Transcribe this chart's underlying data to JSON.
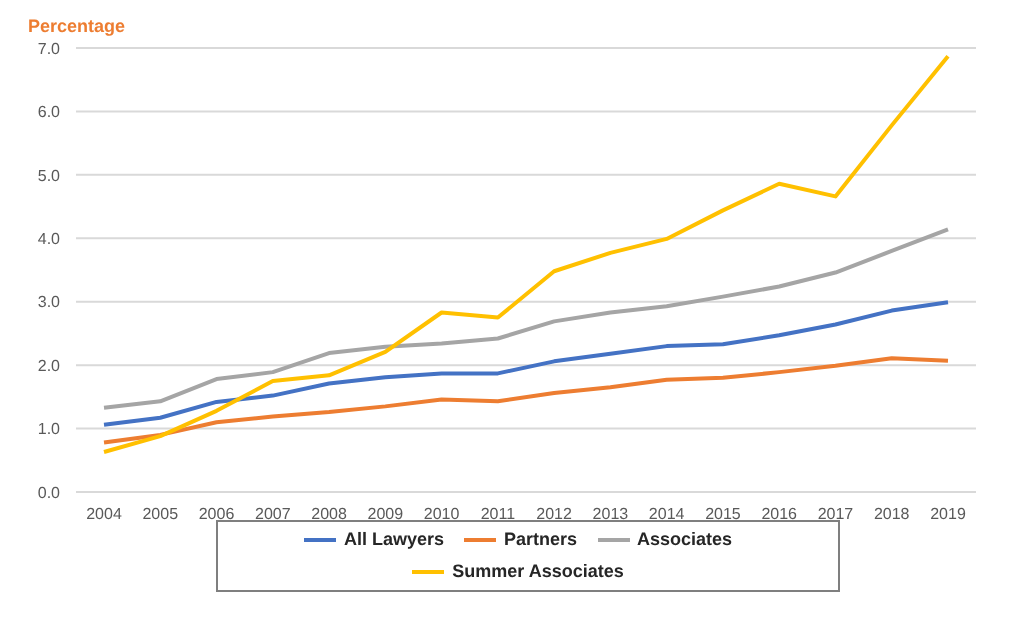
{
  "chart_data": {
    "type": "line",
    "ylabel": "Percentage",
    "categories": [
      "2004",
      "2005",
      "2006",
      "2007",
      "2008",
      "2009",
      "2010",
      "2011",
      "2012",
      "2013",
      "2014",
      "2015",
      "2016",
      "2017",
      "2018",
      "2019"
    ],
    "series": [
      {
        "name": "All Lawyers",
        "color": "#4472c4",
        "values": [
          1.06,
          1.17,
          1.42,
          1.52,
          1.71,
          1.81,
          1.87,
          1.87,
          2.06,
          2.18,
          2.3,
          2.33,
          2.47,
          2.64,
          2.86,
          2.99
        ]
      },
      {
        "name": "Partners",
        "color": "#ed7d31",
        "values": [
          0.78,
          0.9,
          1.1,
          1.19,
          1.26,
          1.35,
          1.46,
          1.43,
          1.56,
          1.65,
          1.77,
          1.8,
          1.89,
          1.99,
          2.11,
          2.07
        ]
      },
      {
        "name": "Associates",
        "color": "#a5a5a5",
        "values": [
          1.33,
          1.43,
          1.78,
          1.89,
          2.19,
          2.29,
          2.34,
          2.42,
          2.69,
          2.83,
          2.93,
          3.08,
          3.24,
          3.46,
          3.8,
          4.14
        ]
      },
      {
        "name": "Summer Associates",
        "color": "#ffc000",
        "values": [
          0.63,
          0.88,
          1.28,
          1.75,
          1.84,
          2.21,
          2.83,
          2.75,
          3.48,
          3.77,
          3.99,
          4.44,
          4.86,
          4.66,
          5.78,
          6.87
        ]
      }
    ],
    "ylim": [
      0,
      7
    ],
    "yticks": [
      {
        "value": 0,
        "label": "0.0"
      },
      {
        "value": 1,
        "label": "1.0"
      },
      {
        "value": 2,
        "label": "2.0"
      },
      {
        "value": 3,
        "label": "3.0"
      },
      {
        "value": 4,
        "label": "4.0"
      },
      {
        "value": 5,
        "label": "5.0"
      },
      {
        "value": 6,
        "label": "6.0"
      },
      {
        "value": 7,
        "label": "7.0"
      }
    ],
    "grid": "y",
    "legend": "bottom",
    "marker": "none",
    "line_style": "solid"
  }
}
